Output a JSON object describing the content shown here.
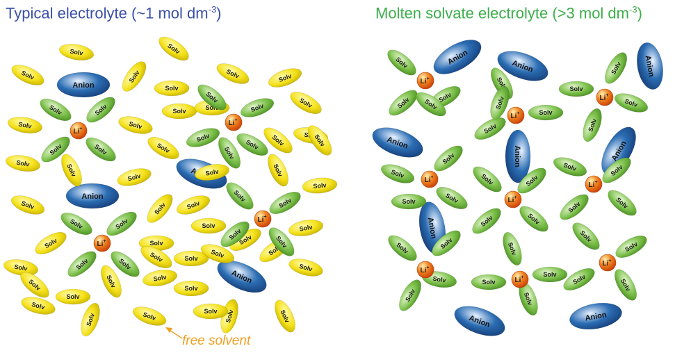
{
  "left_panel": {
    "title_main": "Typical electrolyte (~1 mol dm",
    "title_sup": "-3",
    "title_end": ")",
    "title_color": "#3a4fa8"
  },
  "right_panel": {
    "title_main": "Molten solvate electrolyte (>3 mol dm",
    "title_sup": "-3",
    "title_end": ")",
    "title_color": "#3bae4a"
  },
  "annotation": {
    "text": "free solvent",
    "color": "#f0a020"
  },
  "labels": {
    "solvent": "Solv",
    "anion": "Anion",
    "lithium": "Li",
    "lithium_charge": "+"
  },
  "colors": {
    "free_solvent": "#f4e11a",
    "coordinated_solvent": "#7cc04a",
    "anion": "#2b6db3",
    "lithium": "#f0801e"
  },
  "legend_icons": {
    "solvent": "ellipse-molecule",
    "anion": "ellipse-anion",
    "lithium": "sphere-ion"
  }
}
